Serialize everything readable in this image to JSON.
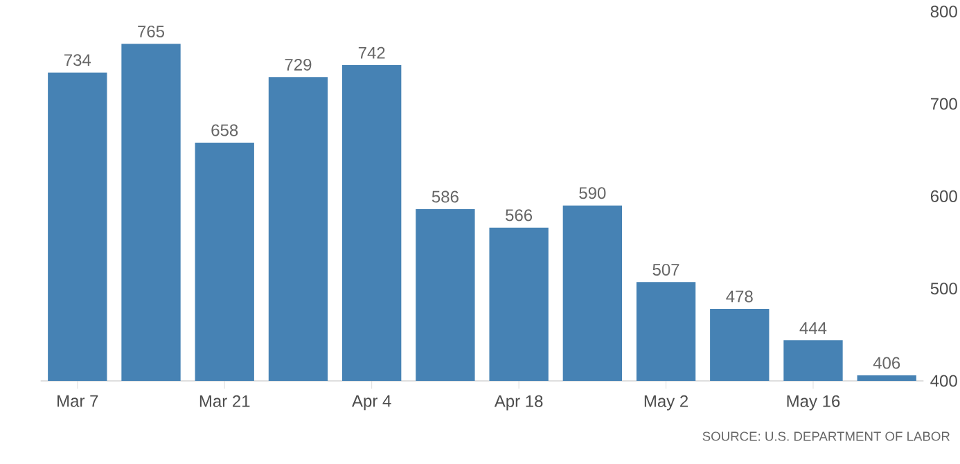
{
  "chart_data": {
    "type": "bar",
    "categories": [
      "Mar 7",
      null,
      "Mar 21",
      null,
      "Apr 4",
      null,
      "Apr 18",
      null,
      "May 2",
      null,
      "May 16",
      null
    ],
    "values": [
      734,
      765,
      658,
      729,
      742,
      586,
      566,
      590,
      507,
      478,
      444,
      406
    ],
    "color": "#4682b4",
    "ylim": [
      400,
      800
    ],
    "yticks": [
      400,
      500,
      600,
      700,
      800
    ],
    "data_labels": true,
    "annotations": [
      "SOURCE: U.S. DEPARTMENT OF LABOR"
    ]
  }
}
